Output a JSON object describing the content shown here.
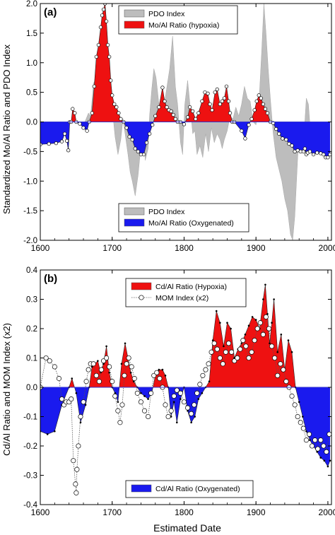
{
  "figure": {
    "xlabel": "Estimated Date",
    "colors": {
      "pdo": "#bdbdbd",
      "hypoxia": "#ee1111",
      "oxygenated": "#1a1aee",
      "axis": "#000000",
      "zero_line": "#3333cc",
      "marker_fill": "#ffffff"
    }
  },
  "chart_data": [
    {
      "panel_label": "(a)",
      "type": "area",
      "ylabel": "Standardized Mo/Al Ratio and PDO Index",
      "xlabel": "",
      "xlim": [
        1600,
        2005
      ],
      "ylim": [
        -2.0,
        2.0
      ],
      "x_ticks": [
        1600,
        1700,
        1800,
        1900,
        2000
      ],
      "y_ticks": [
        -2.0,
        -1.5,
        -1.0,
        -0.5,
        0.0,
        0.5,
        1.0,
        1.5,
        2.0
      ],
      "y_tick_labels": [
        "-2.0",
        "-1.5",
        "-1.0",
        "-0.5",
        "0.0",
        "0.5",
        "1.0",
        "1.5",
        "2.0"
      ],
      "grid": false,
      "legend_top": [
        {
          "label": "PDO Index",
          "swatch": "pdo"
        },
        {
          "label": "Mo/Al Ratio (hypoxia)",
          "swatch": "hypoxia"
        }
      ],
      "legend_bottom": [
        {
          "label": "PDO Index",
          "swatch": "pdo"
        },
        {
          "label": "Mo/Al Ratio (Oxygenated)",
          "swatch": "oxygenated"
        }
      ],
      "series": [
        {
          "name": "PDO Index",
          "style": "area",
          "x": [
            1662,
            1667,
            1670,
            1674,
            1678,
            1682,
            1686,
            1690,
            1693,
            1697,
            1700,
            1704,
            1708,
            1712,
            1715,
            1718,
            1722,
            1725,
            1728,
            1732,
            1736,
            1740,
            1744,
            1746,
            1750,
            1752,
            1755,
            1758,
            1761,
            1765,
            1770,
            1775,
            1780,
            1784,
            1788,
            1791,
            1795,
            1798,
            1801,
            1805,
            1809,
            1812,
            1815,
            1818,
            1822,
            1826,
            1830,
            1834,
            1838,
            1842,
            1846,
            1850,
            1853,
            1856,
            1860,
            1864,
            1868,
            1872,
            1876,
            1880,
            1884,
            1888,
            1892,
            1896,
            1900,
            1904,
            1908,
            1911,
            1914,
            1917,
            1920,
            1924,
            1928,
            1932,
            1936,
            1940,
            1944,
            1948,
            1951,
            1954,
            1958,
            1961,
            1964,
            1967,
            1970,
            1973,
            1976,
            1980,
            1984,
            1988,
            1992,
            1996,
            2000
          ],
          "values": [
            0.0,
            0.15,
            0.1,
            0.65,
            0.75,
            1.1,
            1.7,
            2.0,
            1.5,
            0.8,
            0.25,
            -0.25,
            -0.55,
            -0.3,
            0.05,
            -0.2,
            -0.55,
            -0.85,
            -1.0,
            -1.25,
            -0.9,
            -0.4,
            -0.15,
            -0.65,
            -0.45,
            0.1,
            0.55,
            0.9,
            0.75,
            0.3,
            0.1,
            0.5,
            0.9,
            1.45,
            0.6,
            0.3,
            -0.35,
            -0.55,
            0.3,
            0.7,
            0.2,
            -0.2,
            -0.15,
            -0.55,
            -0.4,
            -0.6,
            -0.2,
            -0.5,
            -0.1,
            -0.35,
            -0.2,
            -0.3,
            -0.45,
            -0.3,
            -0.15,
            0.1,
            0.05,
            0.25,
            0.1,
            0.3,
            0.6,
            0.4,
            0.35,
            0.0,
            -0.05,
            0.3,
            1.2,
            2.0,
            1.5,
            0.9,
            0.4,
            -0.2,
            -0.6,
            -0.8,
            -1.0,
            -1.3,
            -1.5,
            -1.9,
            -2.0,
            -1.6,
            -0.6,
            -0.1,
            -0.5,
            -0.2,
            0.4,
            0.3,
            -0.2,
            -0.35,
            -0.3,
            -0.2,
            -0.3,
            -0.35,
            -0.35
          ]
        },
        {
          "name": "Mo/Al Ratio",
          "style": "area-with-markers",
          "x": [
            1600,
            1612,
            1622,
            1630,
            1634,
            1637,
            1639,
            1641,
            1643,
            1645,
            1648,
            1650,
            1655,
            1660,
            1665,
            1668,
            1672,
            1675,
            1678,
            1681,
            1684,
            1686,
            1688,
            1690,
            1692,
            1694,
            1696,
            1698,
            1700,
            1703,
            1706,
            1709,
            1712,
            1716,
            1720,
            1724,
            1728,
            1732,
            1736,
            1740,
            1744,
            1748,
            1752,
            1756,
            1760,
            1765,
            1770,
            1773,
            1776,
            1779,
            1782,
            1785,
            1788,
            1791,
            1795,
            1800,
            1805,
            1808,
            1812,
            1816,
            1820,
            1825,
            1829,
            1833,
            1836,
            1839,
            1843,
            1846,
            1850,
            1853,
            1856,
            1859,
            1862,
            1864,
            1867,
            1870,
            1880,
            1885,
            1890,
            1894,
            1898,
            1901,
            1904,
            1907,
            1910,
            1913,
            1916,
            1920,
            1924,
            1928,
            1932,
            1937,
            1942,
            1946,
            1950,
            1954,
            1958,
            1962,
            1966,
            1968,
            1970,
            1972,
            1975,
            1980,
            1985,
            1990,
            1994,
            1997,
            2000,
            2003
          ],
          "values": [
            -0.38,
            -0.37,
            -0.36,
            -0.33,
            -0.2,
            -0.32,
            -0.48,
            0.0,
            0.0,
            0.22,
            0.15,
            0.0,
            -0.03,
            -0.1,
            -0.15,
            0.0,
            0.15,
            0.6,
            1.1,
            1.3,
            1.6,
            1.8,
            1.9,
            2.0,
            1.7,
            1.3,
            1.1,
            0.7,
            0.45,
            0.3,
            0.25,
            0.15,
            0.05,
            0.0,
            -0.1,
            -0.25,
            -0.3,
            -0.45,
            -0.5,
            -0.55,
            -0.55,
            -0.35,
            -0.2,
            -0.05,
            0.1,
            0.25,
            0.58,
            0.35,
            0.25,
            0.2,
            0.18,
            0.12,
            0.05,
            0.0,
            0.0,
            -0.04,
            0.08,
            0.25,
            0.18,
            0.05,
            0.15,
            0.35,
            0.5,
            0.48,
            0.3,
            0.2,
            0.5,
            0.55,
            0.3,
            0.35,
            0.4,
            0.6,
            0.35,
            0.15,
            0.0,
            0.0,
            -0.15,
            -0.28,
            -0.05,
            0.05,
            0.2,
            0.35,
            0.45,
            0.4,
            0.3,
            0.22,
            0.15,
            0.0,
            -0.02,
            -0.12,
            -0.2,
            -0.28,
            -0.3,
            -0.37,
            -0.4,
            -0.5,
            -0.48,
            -0.5,
            -0.5,
            -0.45,
            -0.55,
            -0.52,
            -0.5,
            -0.55,
            -0.52,
            -0.53,
            -0.55,
            -0.6,
            -0.6,
            -0.55
          ]
        }
      ]
    },
    {
      "panel_label": "(b)",
      "type": "area",
      "ylabel": "Cd/Al Ratio and MOM Index (x2)",
      "xlabel": "Estimated Date",
      "xlim": [
        1600,
        2005
      ],
      "ylim": [
        -0.4,
        0.4
      ],
      "x_ticks": [
        1600,
        1700,
        1800,
        1900,
        2000
      ],
      "y_ticks": [
        -0.4,
        -0.3,
        -0.2,
        -0.1,
        0.0,
        0.1,
        0.2,
        0.3,
        0.4
      ],
      "y_tick_labels": [
        "-0.4",
        "-0.3",
        "-0.2",
        "-0.1",
        "0.0",
        "0.1",
        "0.2",
        "0.3",
        "0.4"
      ],
      "grid": false,
      "legend_top": [
        {
          "label": "Cd/Al Ratio (Hypoxia)",
          "swatch": "hypoxia"
        },
        {
          "label": "MOM Index (x2)",
          "swatch": "mom"
        }
      ],
      "legend_bottom": [
        {
          "label": "Cd/Al Ratio (Oxygenated)",
          "swatch": "oxygenated"
        }
      ],
      "series": [
        {
          "name": "Cd/Al Ratio",
          "style": "area-with-dots",
          "x": [
            1600,
            1610,
            1620,
            1630,
            1640,
            1644,
            1650,
            1656,
            1663,
            1668,
            1672,
            1676,
            1680,
            1684,
            1688,
            1692,
            1696,
            1700,
            1704,
            1708,
            1713,
            1718,
            1722,
            1726,
            1730,
            1735,
            1740,
            1745,
            1750,
            1755,
            1760,
            1765,
            1770,
            1774,
            1778,
            1782,
            1786,
            1790,
            1795,
            1800,
            1805,
            1810,
            1815,
            1820,
            1825,
            1830,
            1835,
            1840,
            1845,
            1850,
            1855,
            1860,
            1865,
            1870,
            1875,
            1880,
            1885,
            1890,
            1895,
            1900,
            1905,
            1910,
            1913,
            1916,
            1919,
            1922,
            1925,
            1930,
            1935,
            1940,
            1945,
            1950,
            1955,
            1960,
            1965,
            1970,
            1975,
            1980,
            1985,
            1990,
            1995,
            2000,
            2003
          ],
          "values": [
            -0.15,
            -0.16,
            -0.15,
            -0.06,
            0.0,
            0.03,
            -0.02,
            -0.12,
            -0.06,
            0.0,
            0.07,
            0.08,
            0.09,
            0.05,
            0.08,
            0.14,
            0.05,
            0.0,
            -0.02,
            -0.05,
            0.08,
            0.15,
            0.1,
            0.05,
            0.02,
            0.0,
            -0.02,
            -0.03,
            -0.04,
            -0.02,
            0.04,
            0.06,
            0.06,
            0.04,
            0.0,
            -0.1,
            -0.05,
            -0.12,
            -0.04,
            0.0,
            -0.08,
            -0.12,
            -0.1,
            -0.04,
            -0.02,
            0.0,
            0.02,
            0.16,
            0.26,
            0.22,
            0.14,
            0.22,
            0.2,
            0.1,
            0.13,
            0.15,
            0.18,
            0.21,
            0.24,
            0.23,
            0.2,
            0.3,
            0.35,
            0.25,
            0.15,
            0.22,
            0.3,
            0.12,
            0.18,
            0.06,
            0.16,
            0.12,
            0.0,
            -0.05,
            -0.1,
            -0.15,
            -0.18,
            -0.2,
            -0.22,
            -0.24,
            -0.25,
            -0.27,
            -0.25
          ]
        },
        {
          "name": "MOM Index (x2)",
          "style": "dotted-line-with-markers",
          "x": [
            1600,
            1608,
            1613,
            1620,
            1626,
            1630,
            1633,
            1636,
            1640,
            1643,
            1646,
            1649,
            1650,
            1651,
            1653,
            1656,
            1660,
            1664,
            1667,
            1670,
            1674,
            1678,
            1682,
            1685,
            1688,
            1692,
            1696,
            1700,
            1704,
            1708,
            1711,
            1714,
            1717,
            1720,
            1723,
            1727,
            1731,
            1735,
            1740,
            1745,
            1750,
            1754,
            1758,
            1762,
            1766,
            1770,
            1774,
            1778,
            1782,
            1786,
            1790,
            1795,
            1800,
            1805,
            1810,
            1814,
            1818,
            1822,
            1826,
            1830,
            1834,
            1838,
            1842,
            1846,
            1850,
            1854,
            1858,
            1862,
            1866,
            1870,
            1874,
            1878,
            1882,
            1886,
            1890,
            1894,
            1898,
            1902,
            1906,
            1910,
            1914,
            1918,
            1922,
            1926,
            1930,
            1934,
            1938,
            1942,
            1946,
            1950,
            1954,
            1958,
            1962,
            1966,
            1970,
            1974,
            1978,
            1982,
            1986,
            1990,
            1994,
            1998,
            2002
          ],
          "values": [
            0.0,
            0.1,
            0.09,
            0.07,
            0.03,
            -0.04,
            -0.06,
            -0.05,
            -0.05,
            -0.04,
            -0.25,
            -0.33,
            -0.36,
            -0.28,
            -0.2,
            -0.1,
            -0.05,
            0.02,
            0.06,
            0.08,
            0.08,
            0.04,
            0.02,
            0.06,
            0.09,
            0.1,
            0.07,
            0.02,
            -0.03,
            -0.08,
            -0.12,
            -0.06,
            0.04,
            0.08,
            0.1,
            0.07,
            0.03,
            -0.02,
            -0.05,
            -0.08,
            -0.1,
            -0.02,
            0.04,
            0.05,
            0.03,
            0.0,
            -0.06,
            -0.1,
            -0.08,
            -0.03,
            -0.01,
            -0.02,
            -0.05,
            -0.07,
            -0.09,
            -0.06,
            -0.02,
            0.01,
            0.04,
            0.06,
            0.08,
            0.12,
            0.15,
            0.13,
            0.1,
            0.08,
            0.12,
            0.15,
            0.12,
            0.09,
            0.1,
            0.13,
            0.16,
            0.14,
            0.1,
            0.12,
            0.16,
            0.2,
            0.22,
            0.18,
            0.24,
            0.2,
            0.14,
            0.1,
            0.04,
            0.08,
            0.06,
            0.02,
            0.0,
            -0.03,
            -0.06,
            -0.1,
            -0.12,
            -0.14,
            -0.18,
            -0.16,
            -0.2,
            -0.18,
            -0.21,
            -0.18,
            -0.2,
            -0.22,
            -0.16
          ]
        }
      ]
    }
  ]
}
